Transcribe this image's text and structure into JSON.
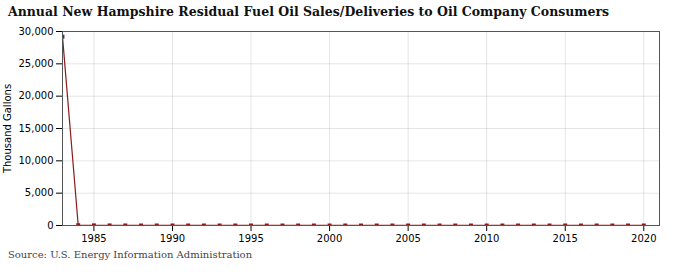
{
  "chart_data": {
    "type": "line",
    "title": "Annual New Hampshire Residual Fuel Oil Sales/Deliveries to Oil Company Consumers",
    "ylabel": "Thousand Gallons",
    "source": "Source: U.S. Energy Information Administration",
    "x": [
      1983,
      1984,
      1985,
      1986,
      1987,
      1988,
      1989,
      1990,
      1991,
      1992,
      1993,
      1994,
      1995,
      1996,
      1997,
      1998,
      1999,
      2000,
      2001,
      2002,
      2003,
      2004,
      2005,
      2006,
      2007,
      2008,
      2009,
      2010,
      2011,
      2012,
      2013,
      2014,
      2015,
      2016,
      2017,
      2018,
      2019,
      2020
    ],
    "values": [
      29200,
      50,
      30,
      20,
      15,
      10,
      10,
      10,
      8,
      8,
      8,
      8,
      8,
      8,
      8,
      8,
      8,
      8,
      8,
      8,
      8,
      8,
      8,
      8,
      8,
      8,
      8,
      8,
      8,
      8,
      8,
      8,
      8,
      8,
      8,
      8,
      8,
      8
    ],
    "color": "#8b1a1a",
    "marker": "square",
    "xlim": [
      1983,
      2021
    ],
    "ylim": [
      0,
      30000
    ],
    "xticks": [
      1985,
      1990,
      1995,
      2000,
      2005,
      2010,
      2015,
      2020
    ],
    "yticks": [
      0,
      {
        "value": 5000,
        "label": "5,000"
      },
      {
        "value": 10000,
        "label": "10,000"
      },
      {
        "value": 15000,
        "label": "15,000"
      },
      {
        "value": 20000,
        "label": "20,000"
      },
      {
        "value": 25000,
        "label": "25,000"
      },
      {
        "value": 30000,
        "label": "30,000"
      }
    ],
    "grid": true
  }
}
